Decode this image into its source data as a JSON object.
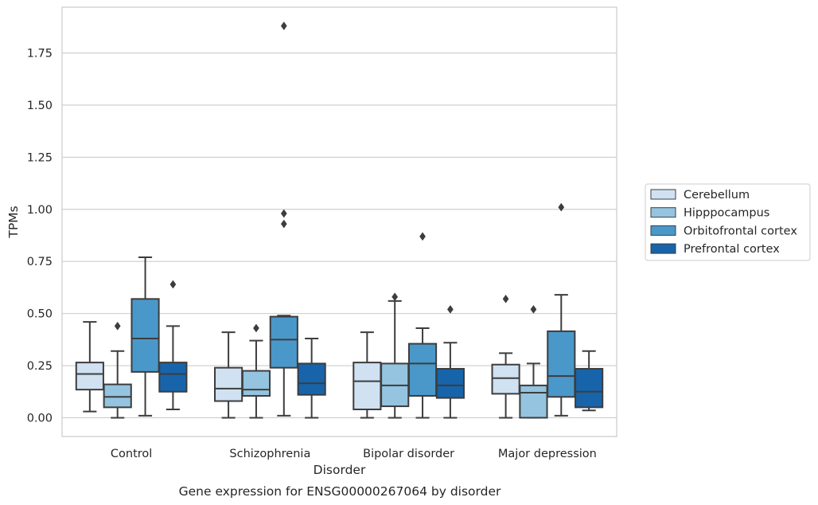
{
  "chart_data": {
    "type": "box",
    "title": "",
    "caption": "Gene expression for ENSG00000267064 by disorder",
    "xlabel": "Disorder",
    "ylabel": "TPMs",
    "ylim": [
      -0.09,
      1.97
    ],
    "yticks": [
      0.0,
      0.25,
      0.5,
      0.75,
      1.0,
      1.25,
      1.5,
      1.75
    ],
    "ytick_labels": [
      "0.00",
      "0.25",
      "0.50",
      "0.75",
      "1.00",
      "1.25",
      "1.50",
      "1.75"
    ],
    "grid": "horizontal",
    "legend_position": "right",
    "categories": [
      "Control",
      "Schizophrenia",
      "Bipolar disorder",
      "Major depression"
    ],
    "series": [
      {
        "name": "Cerebellum",
        "color": "#d0e1f2",
        "boxes": [
          {
            "whisker_low": 0.03,
            "q1": 0.135,
            "median": 0.21,
            "q3": 0.265,
            "whisker_high": 0.46,
            "outliers": []
          },
          {
            "whisker_low": 0.0,
            "q1": 0.08,
            "median": 0.14,
            "q3": 0.24,
            "whisker_high": 0.41,
            "outliers": []
          },
          {
            "whisker_low": 0.0,
            "q1": 0.04,
            "median": 0.175,
            "q3": 0.265,
            "whisker_high": 0.41,
            "outliers": []
          },
          {
            "whisker_low": 0.0,
            "q1": 0.115,
            "median": 0.19,
            "q3": 0.255,
            "whisker_high": 0.31,
            "outliers": [
              0.57
            ]
          }
        ]
      },
      {
        "name": "Hipppocampus",
        "color": "#94c4df",
        "boxes": [
          {
            "whisker_low": 0.0,
            "q1": 0.05,
            "median": 0.1,
            "q3": 0.16,
            "whisker_high": 0.32,
            "outliers": [
              0.44
            ]
          },
          {
            "whisker_low": 0.0,
            "q1": 0.105,
            "median": 0.135,
            "q3": 0.225,
            "whisker_high": 0.37,
            "outliers": [
              0.43
            ]
          },
          {
            "whisker_low": 0.0,
            "q1": 0.055,
            "median": 0.155,
            "q3": 0.26,
            "whisker_high": 0.56,
            "outliers": [
              0.58
            ]
          },
          {
            "whisker_low": 0.0,
            "q1": 0.0,
            "median": 0.12,
            "q3": 0.155,
            "whisker_high": 0.26,
            "outliers": [
              0.52
            ]
          }
        ]
      },
      {
        "name": "Orbitofrontal cortex",
        "color": "#4a98c9",
        "boxes": [
          {
            "whisker_low": 0.01,
            "q1": 0.22,
            "median": 0.38,
            "q3": 0.57,
            "whisker_high": 0.77,
            "outliers": []
          },
          {
            "whisker_low": 0.01,
            "q1": 0.24,
            "median": 0.375,
            "q3": 0.485,
            "whisker_high": 0.49,
            "outliers": [
              0.93,
              0.98,
              1.88
            ]
          },
          {
            "whisker_low": 0.0,
            "q1": 0.105,
            "median": 0.26,
            "q3": 0.355,
            "whisker_high": 0.43,
            "outliers": [
              0.87
            ]
          },
          {
            "whisker_low": 0.01,
            "q1": 0.1,
            "median": 0.2,
            "q3": 0.415,
            "whisker_high": 0.59,
            "outliers": [
              1.01
            ]
          }
        ]
      },
      {
        "name": "Prefrontal cortex",
        "color": "#1764ab",
        "boxes": [
          {
            "whisker_low": 0.04,
            "q1": 0.125,
            "median": 0.21,
            "q3": 0.265,
            "whisker_high": 0.44,
            "outliers": [
              0.64
            ]
          },
          {
            "whisker_low": 0.0,
            "q1": 0.11,
            "median": 0.165,
            "q3": 0.26,
            "whisker_high": 0.38,
            "outliers": []
          },
          {
            "whisker_low": 0.0,
            "q1": 0.095,
            "median": 0.155,
            "q3": 0.235,
            "whisker_high": 0.36,
            "outliers": [
              0.52
            ]
          },
          {
            "whisker_low": 0.035,
            "q1": 0.05,
            "median": 0.125,
            "q3": 0.235,
            "whisker_high": 0.32,
            "outliers": []
          }
        ]
      }
    ]
  }
}
